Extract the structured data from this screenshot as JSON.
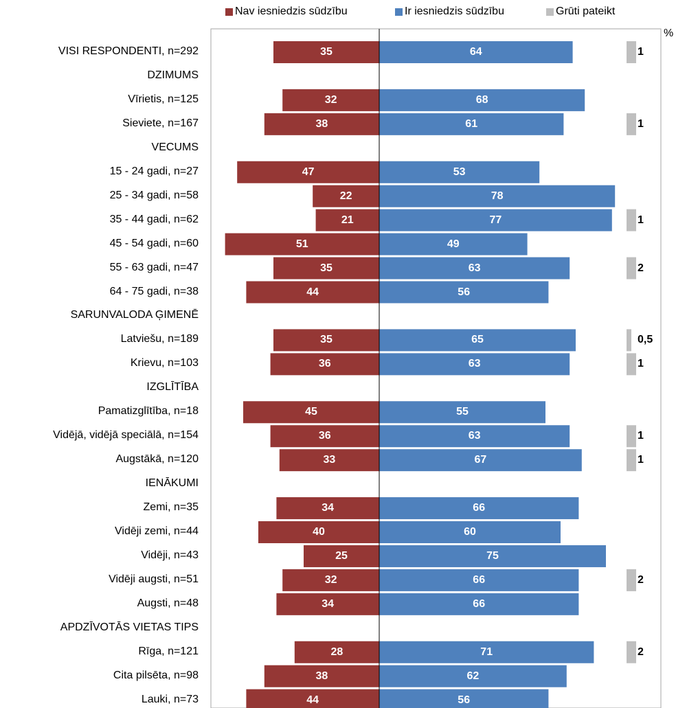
{
  "legend": {
    "no": "Nav iesniedzis sūdzību",
    "yes": "Ir iesniedzis sūdzību",
    "dk": "Grūti pateikt"
  },
  "unit_label": "%",
  "colors": {
    "no": "#953735",
    "yes": "#4f81bd",
    "dk": "#bfbfbf",
    "axis": "#000000"
  },
  "chart_data": {
    "type": "bar",
    "orientation": "horizontal-diverging",
    "series_names": [
      "Nav iesniedzis sūdzību",
      "Ir iesniedzis sūdzību",
      "Grūti pateikt"
    ],
    "rows": [
      {
        "label": "VISI RESPONDENTI, n=292",
        "no": 35,
        "yes": 64,
        "dk": 1,
        "dk_label": "1"
      },
      {
        "label": "DZIMUMS",
        "header": true
      },
      {
        "label": "Vīrietis, n=125",
        "no": 32,
        "yes": 68
      },
      {
        "label": "Sieviete, n=167",
        "no": 38,
        "yes": 61,
        "dk": 1,
        "dk_label": "1"
      },
      {
        "label": "VECUMS",
        "header": true
      },
      {
        "label": "15 - 24 gadi, n=27",
        "no": 47,
        "yes": 53
      },
      {
        "label": "25 - 34 gadi, n=58",
        "no": 22,
        "yes": 78
      },
      {
        "label": "35 - 44 gadi, n=62",
        "no": 21,
        "yes": 77,
        "dk": 1,
        "dk_label": "1"
      },
      {
        "label": "45 - 54 gadi, n=60",
        "no": 51,
        "yes": 49
      },
      {
        "label": "55 - 63 gadi, n=47",
        "no": 35,
        "yes": 63,
        "dk": 2,
        "dk_label": "2"
      },
      {
        "label": "64 - 75 gadi, n=38",
        "no": 44,
        "yes": 56
      },
      {
        "label": "SARUNVALODA ĢIMENĒ",
        "header": true
      },
      {
        "label": "Latviešu, n=189",
        "no": 35,
        "yes": 65,
        "dk": 0.5,
        "dk_label": "0,5"
      },
      {
        "label": "Krievu, n=103",
        "no": 36,
        "yes": 63,
        "dk": 1,
        "dk_label": "1"
      },
      {
        "label": "IZGLĪTĪBA",
        "header": true
      },
      {
        "label": "Pamatizglītība, n=18",
        "no": 45,
        "yes": 55
      },
      {
        "label": "Vidējā, vidējā speciālā, n=154",
        "no": 36,
        "yes": 63,
        "dk": 1,
        "dk_label": "1"
      },
      {
        "label": "Augstākā, n=120",
        "no": 33,
        "yes": 67,
        "dk": 1,
        "dk_label": "1"
      },
      {
        "label": "IENĀKUMI",
        "header": true
      },
      {
        "label": "Zemi, n=35",
        "no": 34,
        "yes": 66
      },
      {
        "label": "Vidēji zemi, n=44",
        "no": 40,
        "yes": 60
      },
      {
        "label": "Vidēji, n=43",
        "no": 25,
        "yes": 75
      },
      {
        "label": "Vidēji augsti, n=51",
        "no": 32,
        "yes": 66,
        "dk": 2,
        "dk_label": "2"
      },
      {
        "label": "Augsti, n=48",
        "no": 34,
        "yes": 66
      },
      {
        "label": "APDZĪVOTĀS VIETAS TIPS",
        "header": true
      },
      {
        "label": "Rīga, n=121",
        "no": 28,
        "yes": 71,
        "dk": 2,
        "dk_label": "2"
      },
      {
        "label": "Cita pilsēta, n=98",
        "no": 38,
        "yes": 62
      },
      {
        "label": "Lauki, n=73",
        "no": 44,
        "yes": 56
      }
    ]
  }
}
